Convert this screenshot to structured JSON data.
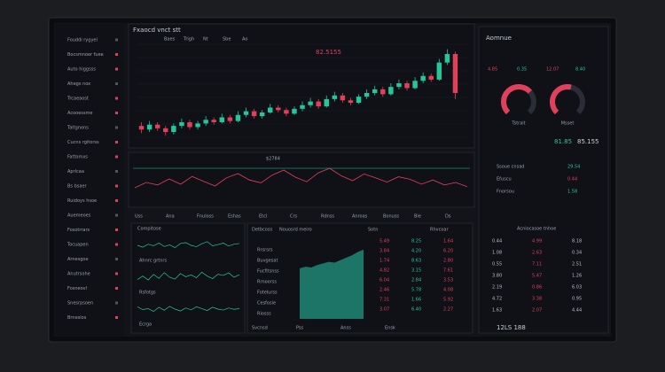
{
  "header": {
    "title": "Fxaocd vnct stt",
    "tabs": [
      "Baes",
      "Trigh",
      "Nt",
      "Sbe",
      "Ao"
    ]
  },
  "sidebar": {
    "items": [
      "Fouddi rygyel",
      "Bocsmnoer fuee",
      "Auto higgsss",
      "Ahegs nox",
      "Trcaeaost",
      "Acooessme",
      "Taltgnons",
      "Cucns rgitorss",
      "Fattomxs",
      "Aprlcaa",
      "Bs bsaer",
      "Ruidoys hsoe",
      "Auemeoes",
      "Fosotrrars",
      "Tocuapen",
      "Arnesgoe",
      "Anutrsohe",
      "Fosneovl",
      "Snesrpsoen",
      "Brneslos"
    ]
  },
  "chart": {
    "type": "candlestick",
    "label": "82.5155",
    "up_color": "#27c59a",
    "down_color": "#e0405a",
    "ylim": [
      20,
      100
    ],
    "open": [
      33,
      30,
      34,
      31,
      28,
      33,
      36,
      32,
      35,
      38,
      36,
      40,
      37,
      42,
      45,
      41,
      44,
      48,
      46,
      43,
      47,
      50,
      53,
      49,
      55,
      58,
      54,
      52,
      57,
      60,
      63,
      59,
      65,
      68,
      64,
      70,
      74,
      71,
      85,
      92
    ],
    "close": [
      30,
      34,
      31,
      28,
      33,
      36,
      32,
      35,
      38,
      36,
      40,
      37,
      42,
      45,
      41,
      44,
      48,
      46,
      43,
      47,
      50,
      53,
      49,
      55,
      58,
      54,
      52,
      57,
      60,
      63,
      59,
      65,
      68,
      64,
      70,
      74,
      71,
      85,
      92,
      60
    ],
    "high": [
      36,
      37,
      36,
      33,
      35,
      39,
      38,
      37,
      41,
      40,
      43,
      42,
      45,
      48,
      47,
      46,
      51,
      50,
      48,
      49,
      53,
      56,
      55,
      58,
      61,
      60,
      56,
      59,
      63,
      66,
      65,
      68,
      71,
      70,
      73,
      77,
      76,
      88,
      96,
      94
    ],
    "low": [
      27,
      28,
      29,
      25,
      26,
      31,
      30,
      30,
      33,
      34,
      35,
      35,
      36,
      40,
      39,
      39,
      43,
      44,
      41,
      42,
      45,
      48,
      47,
      48,
      53,
      52,
      50,
      51,
      55,
      58,
      57,
      58,
      63,
      62,
      63,
      68,
      69,
      70,
      83,
      55
    ]
  },
  "volume": {
    "label": "$2784",
    "ylim": [
      0,
      100
    ],
    "color": "#e0405a",
    "values": [
      30,
      45,
      38,
      55,
      40,
      62,
      48,
      35,
      58,
      70,
      52,
      44,
      66,
      80,
      60,
      47,
      72,
      85,
      64,
      50,
      69,
      58,
      46,
      61,
      54,
      40,
      52,
      38,
      45,
      33
    ]
  },
  "toolbar": [
    "Uss",
    "Ana",
    "Fnuloss",
    "Eshas",
    "Etcl",
    "Crs",
    "Rdnss",
    "Anroas",
    "Bonuss",
    "Bie",
    "Ds"
  ],
  "mini_charts": {
    "title": "Compitose",
    "labels": [
      "Ahnrc grtnrs",
      "Rsfotgs",
      "Ecrga"
    ],
    "ylim": [
      0,
      100
    ],
    "color": "#27c59a",
    "series": [
      [
        50,
        42,
        55,
        48,
        60,
        45,
        52,
        40,
        58,
        62,
        50,
        44,
        57,
        66,
        48,
        53,
        60,
        47,
        55,
        58
      ],
      [
        40,
        55,
        38,
        62,
        45,
        70,
        50,
        42,
        66,
        52,
        60,
        48,
        72,
        55,
        44,
        63,
        58,
        69,
        50,
        61
      ],
      [
        60,
        48,
        52,
        40,
        58,
        45,
        62,
        50,
        42,
        55,
        47,
        60,
        52,
        44,
        58,
        50,
        46,
        55,
        49,
        52
      ]
    ]
  },
  "order_book": {
    "headers": [
      "Detbcoss",
      "Nouosrd meiro",
      "Sotn",
      "Rhvcoar"
    ],
    "labels": [
      "Rrsrsrs",
      "Buvgesat",
      "Fucfitsnss",
      "Rrnoorss",
      "Fotelurss",
      "Cesfosie",
      "Riosss"
    ],
    "depth_ylim": [
      0,
      100
    ],
    "depth_color": "#1f8f7c",
    "depth": [
      62,
      64,
      63,
      66,
      68,
      70,
      69,
      72,
      75,
      78,
      82,
      85
    ],
    "rows": [
      [
        "5.49",
        "8.25",
        "1.64"
      ],
      [
        "3.84",
        "4.20",
        "6.20"
      ],
      [
        "1.74",
        "8.63",
        "2.80"
      ],
      [
        "4.82",
        "3.15",
        "7.61"
      ],
      [
        "6.04",
        "2.84",
        "3.53"
      ],
      [
        "2.46",
        "5.78",
        "4.08"
      ],
      [
        "7.31",
        "1.66",
        "5.92"
      ],
      [
        "3.07",
        "6.40",
        "2.27"
      ]
    ],
    "footer": [
      "Svcnsd",
      "Pss",
      "Anss",
      "Ensk"
    ]
  },
  "right_panel": {
    "title": "Aomnue",
    "stats": [
      "4.85",
      "0.35",
      "12.07",
      "8.40"
    ],
    "gauges": [
      {
        "label": "Tstrait",
        "value": 68,
        "color": "#e0405a"
      },
      {
        "label": "Msset",
        "value": 55,
        "color": "#e0405a"
      }
    ],
    "summary": [
      "81.85",
      "85.155"
    ],
    "pairs": [
      [
        "Ssoue cnsad",
        "29.54"
      ],
      [
        "Efuscu",
        "0.44"
      ],
      [
        "Fnorsou",
        "1.58"
      ]
    ],
    "table_header": "Acniocasoe tnhoe",
    "table": [
      [
        "0.44",
        "4.99",
        "8.18"
      ],
      [
        "1.08",
        "2.63",
        "0.34"
      ],
      [
        "0.55",
        "7.11",
        "2.51"
      ],
      [
        "3.80",
        "5.47",
        "1.26"
      ],
      [
        "2.19",
        "0.86",
        "6.03"
      ],
      [
        "4.72",
        "3.38",
        "0.95"
      ],
      [
        "1.63",
        "2.07",
        "4.44"
      ]
    ],
    "footer": "12LS 188"
  }
}
